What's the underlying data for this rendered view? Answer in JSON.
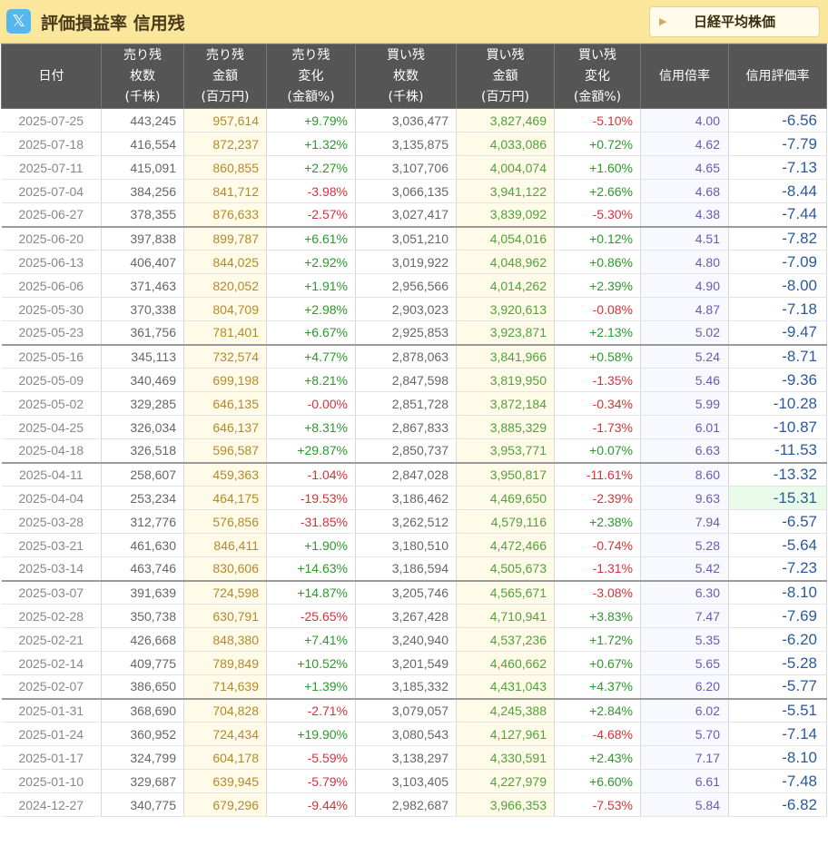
{
  "header": {
    "x_icon_glyph": "𝕏",
    "title": "評価損益率 信用残",
    "nikkei_button": "日経平均株価",
    "nikkei_arrow": "▶"
  },
  "table": {
    "headers": [
      [
        "日付"
      ],
      [
        "売り残",
        "枚数",
        "(千株)"
      ],
      [
        "売り残",
        "金額",
        "(百万円)"
      ],
      [
        "売り残",
        "変化",
        "(金額%)"
      ],
      [
        "買い残",
        "枚数",
        "(千株)"
      ],
      [
        "買い残",
        "金額",
        "(百万円)"
      ],
      [
        "買い残",
        "変化",
        "(金額%)"
      ],
      [
        "信用倍率"
      ],
      [
        "信用評価率"
      ]
    ],
    "rows": [
      [
        "2025-07-25",
        "443,245",
        "957,614",
        "+9.79%",
        "3,036,477",
        "3,827,469",
        "-5.10%",
        "4.00",
        "-6.56"
      ],
      [
        "2025-07-18",
        "416,554",
        "872,237",
        "+1.32%",
        "3,135,875",
        "4,033,086",
        "+0.72%",
        "4.62",
        "-7.79"
      ],
      [
        "2025-07-11",
        "415,091",
        "860,855",
        "+2.27%",
        "3,107,706",
        "4,004,074",
        "+1.60%",
        "4.65",
        "-7.13"
      ],
      [
        "2025-07-04",
        "384,256",
        "841,712",
        "-3.98%",
        "3,066,135",
        "3,941,122",
        "+2.66%",
        "4.68",
        "-8.44"
      ],
      [
        "2025-06-27",
        "378,355",
        "876,633",
        "-2.57%",
        "3,027,417",
        "3,839,092",
        "-5.30%",
        "4.38",
        "-7.44"
      ],
      [
        "2025-06-20",
        "397,838",
        "899,787",
        "+6.61%",
        "3,051,210",
        "4,054,016",
        "+0.12%",
        "4.51",
        "-7.82"
      ],
      [
        "2025-06-13",
        "406,407",
        "844,025",
        "+2.92%",
        "3,019,922",
        "4,048,962",
        "+0.86%",
        "4.80",
        "-7.09"
      ],
      [
        "2025-06-06",
        "371,463",
        "820,052",
        "+1.91%",
        "2,956,566",
        "4,014,262",
        "+2.39%",
        "4.90",
        "-8.00"
      ],
      [
        "2025-05-30",
        "370,338",
        "804,709",
        "+2.98%",
        "2,903,023",
        "3,920,613",
        "-0.08%",
        "4.87",
        "-7.18"
      ],
      [
        "2025-05-23",
        "361,756",
        "781,401",
        "+6.67%",
        "2,925,853",
        "3,923,871",
        "+2.13%",
        "5.02",
        "-9.47"
      ],
      [
        "2025-05-16",
        "345,113",
        "732,574",
        "+4.77%",
        "2,878,063",
        "3,841,966",
        "+0.58%",
        "5.24",
        "-8.71"
      ],
      [
        "2025-05-09",
        "340,469",
        "699,198",
        "+8.21%",
        "2,847,598",
        "3,819,950",
        "-1.35%",
        "5.46",
        "-9.36"
      ],
      [
        "2025-05-02",
        "329,285",
        "646,135",
        "-0.00%",
        "2,851,728",
        "3,872,184",
        "-0.34%",
        "5.99",
        "-10.28"
      ],
      [
        "2025-04-25",
        "326,034",
        "646,137",
        "+8.31%",
        "2,867,833",
        "3,885,329",
        "-1.73%",
        "6.01",
        "-10.87"
      ],
      [
        "2025-04-18",
        "326,518",
        "596,587",
        "+29.87%",
        "2,850,737",
        "3,953,771",
        "+0.07%",
        "6.63",
        "-11.53"
      ],
      [
        "2025-04-11",
        "258,607",
        "459,363",
        "-1.04%",
        "2,847,028",
        "3,950,817",
        "-11.61%",
        "8.60",
        "-13.32"
      ],
      [
        "2025-04-04",
        "253,234",
        "464,175",
        "-19.53%",
        "3,186,462",
        "4,469,650",
        "-2.39%",
        "9.63",
        "-15.31"
      ],
      [
        "2025-03-28",
        "312,776",
        "576,856",
        "-31.85%",
        "3,262,512",
        "4,579,116",
        "+2.38%",
        "7.94",
        "-6.57"
      ],
      [
        "2025-03-21",
        "461,630",
        "846,411",
        "+1.90%",
        "3,180,510",
        "4,472,466",
        "-0.74%",
        "5.28",
        "-5.64"
      ],
      [
        "2025-03-14",
        "463,746",
        "830,606",
        "+14.63%",
        "3,186,594",
        "4,505,673",
        "-1.31%",
        "5.42",
        "-7.23"
      ],
      [
        "2025-03-07",
        "391,639",
        "724,598",
        "+14.87%",
        "3,205,746",
        "4,565,671",
        "-3.08%",
        "6.30",
        "-8.10"
      ],
      [
        "2025-02-28",
        "350,738",
        "630,791",
        "-25.65%",
        "3,267,428",
        "4,710,941",
        "+3.83%",
        "7.47",
        "-7.69"
      ],
      [
        "2025-02-21",
        "426,668",
        "848,380",
        "+7.41%",
        "3,240,940",
        "4,537,236",
        "+1.72%",
        "5.35",
        "-6.20"
      ],
      [
        "2025-02-14",
        "409,775",
        "789,849",
        "+10.52%",
        "3,201,549",
        "4,460,662",
        "+0.67%",
        "5.65",
        "-5.28"
      ],
      [
        "2025-02-07",
        "386,650",
        "714,639",
        "+1.39%",
        "3,185,332",
        "4,431,043",
        "+4.37%",
        "6.20",
        "-5.77"
      ],
      [
        "2025-01-31",
        "368,690",
        "704,828",
        "-2.71%",
        "3,079,057",
        "4,245,388",
        "+2.84%",
        "6.02",
        "-5.51"
      ],
      [
        "2025-01-24",
        "360,952",
        "724,434",
        "+19.90%",
        "3,080,543",
        "4,127,961",
        "-4.68%",
        "5.70",
        "-7.14"
      ],
      [
        "2025-01-17",
        "324,799",
        "604,178",
        "-5.59%",
        "3,138,297",
        "4,330,591",
        "+2.43%",
        "7.17",
        "-8.10"
      ],
      [
        "2025-01-10",
        "329,687",
        "639,945",
        "-5.79%",
        "3,103,405",
        "4,227,979",
        "+6.60%",
        "6.61",
        "-7.48"
      ],
      [
        "2024-12-27",
        "340,775",
        "679,296",
        "-9.44%",
        "2,982,687",
        "3,966,353",
        "-7.53%",
        "5.84",
        "-6.82"
      ]
    ]
  },
  "colors": {
    "header_bg": "#fbe79c",
    "table_header_bg": "#555555",
    "positive": "#2a9a2a",
    "negative": "#d9313a",
    "eval": "#2b5a9c",
    "highlight_row_eval_bg": "#e9fbe9"
  }
}
